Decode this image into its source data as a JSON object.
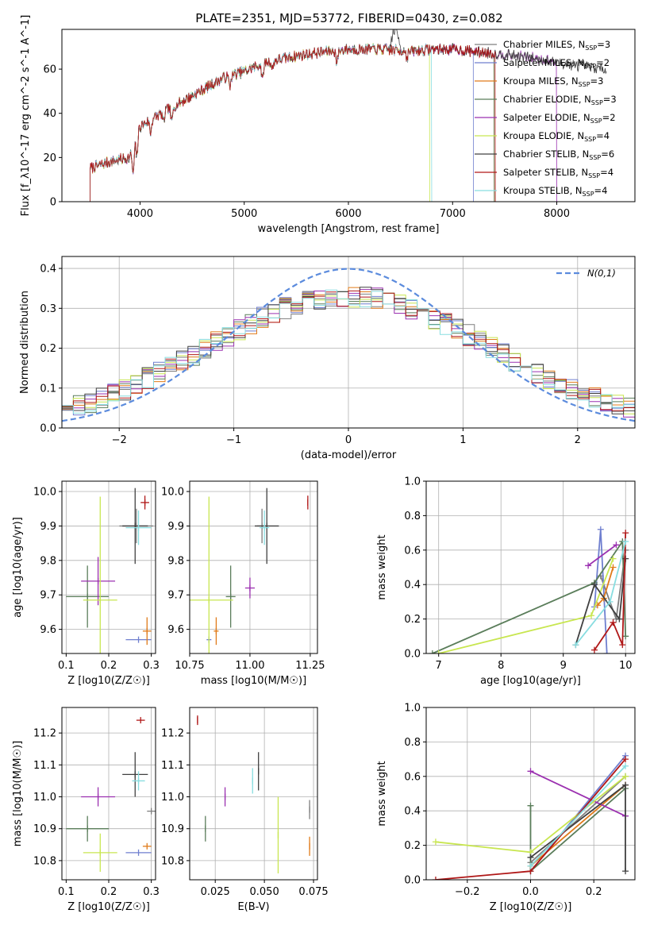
{
  "title": "PLATE=2351, MJD=53772, FIBERID=0430, z=0.082",
  "models": [
    {
      "name": "Chabrier MILES",
      "nssp": "3",
      "color": "#7f7f7f"
    },
    {
      "name": "Salpeter MILES",
      "nssp": "2",
      "color": "#6f7fcf"
    },
    {
      "name": "Kroupa MILES",
      "nssp": "3",
      "color": "#e07b1a"
    },
    {
      "name": "Chabrier ELODIE",
      "nssp": "3",
      "color": "#5a7d5a"
    },
    {
      "name": "Salpeter ELODIE",
      "nssp": "2",
      "color": "#9b30b0"
    },
    {
      "name": "Kroupa ELODIE",
      "nssp": "4",
      "color": "#c8e650"
    },
    {
      "name": "Chabrier STELIB",
      "nssp": "6",
      "color": "#404040"
    },
    {
      "name": "Salpeter STELIB",
      "nssp": "4",
      "color": "#b01818"
    },
    {
      "name": "Kroupa STELIB",
      "nssp": "4",
      "color": "#88dde0"
    }
  ],
  "chart_data": [
    {
      "id": "spectrum",
      "type": "line",
      "xlabel": "wavelength [Angstrom, rest frame]",
      "ylabel": "Flux [f_λ10^-17 erg cm^-2 s^-1 A^-1]",
      "xlim": [
        3250,
        8750
      ],
      "ylim": [
        0,
        78
      ],
      "xticks": [
        4000,
        5000,
        6000,
        7000,
        8000
      ],
      "yticks": [
        0,
        20,
        40,
        60
      ],
      "grid": false,
      "legend": "upper-right",
      "continuum_knots": [
        [
          3520,
          15
        ],
        [
          3700,
          18
        ],
        [
          3900,
          20
        ],
        [
          3950,
          28
        ],
        [
          4000,
          34
        ],
        [
          4200,
          40
        ],
        [
          4500,
          48
        ],
        [
          4800,
          56
        ],
        [
          5000,
          59
        ],
        [
          5200,
          63
        ],
        [
          5500,
          66
        ],
        [
          5800,
          68
        ],
        [
          6000,
          69
        ],
        [
          6300,
          69
        ],
        [
          6600,
          68
        ],
        [
          6800,
          69
        ],
        [
          7000,
          69
        ],
        [
          7200,
          68
        ],
        [
          7400,
          67
        ],
        [
          7600,
          66
        ],
        [
          7800,
          65
        ],
        [
          8000,
          63
        ],
        [
          8300,
          61
        ],
        [
          8480,
          60
        ]
      ],
      "series_ranges": [
        [
          3520,
          8480
        ],
        [
          3520,
          7200
        ],
        [
          3520,
          7400
        ],
        [
          3520,
          7400
        ],
        [
          3520,
          8000
        ],
        [
          3520,
          6780
        ],
        [
          3520,
          8480
        ],
        [
          3520,
          7410
        ],
        [
          3520,
          6800
        ]
      ],
      "noise": 2.2
    },
    {
      "id": "residual-hist",
      "type": "line",
      "xlabel": "(data-model)/error",
      "ylabel": "Normed distribution",
      "xlim": [
        -2.5,
        2.5
      ],
      "ylim": [
        0,
        0.43
      ],
      "xticks": [
        -2,
        -1,
        0,
        1,
        2
      ],
      "yticks": [
        0.0,
        0.1,
        0.2,
        0.3,
        0.4
      ],
      "grid": true,
      "legend": "upper-right",
      "normal_label": "N(0,1)",
      "normal_color": "#5b8bdd",
      "bin_width": 0.1
    },
    {
      "id": "z-vs-age",
      "type": "scatter",
      "xlabel": "Z [log10(Z/Z☉)]",
      "ylabel": "age  [log10(age/yr)]",
      "xlim": [
        0.09,
        0.31
      ],
      "ylim": [
        9.53,
        10.03
      ],
      "xticks": [
        0.1,
        0.2,
        0.3
      ],
      "yticks": [
        9.6,
        9.7,
        9.8,
        9.9,
        10.0
      ],
      "grid": true,
      "crosses": [
        {
          "model": 0,
          "x": 0.265,
          "y": 9.9,
          "xerr": 0.04,
          "yerr": 0.05
        },
        {
          "model": 1,
          "x": 0.27,
          "y": 9.57,
          "xerr": 0.03,
          "yerr": 0.0
        },
        {
          "model": 2,
          "x": 0.29,
          "y": 9.595,
          "xerr": 0.01,
          "yerr": 0.04
        },
        {
          "model": 3,
          "x": 0.15,
          "y": 9.695,
          "xerr": 0.05,
          "yerr": 0.09
        },
        {
          "model": 4,
          "x": 0.175,
          "y": 9.74,
          "xerr": 0.04,
          "yerr": 0.07
        },
        {
          "model": 5,
          "x": 0.18,
          "y": 9.685,
          "xerr": 0.04,
          "yerr": 0.3
        },
        {
          "model": 6,
          "x": 0.262,
          "y": 9.9,
          "xerr": 0.03,
          "yerr": 0.11
        },
        {
          "model": 7,
          "x": 0.285,
          "y": 9.968,
          "xerr": 0.01,
          "yerr": 0.02
        },
        {
          "model": 8,
          "x": 0.27,
          "y": 9.895,
          "xerr": 0.03,
          "yerr": 0.05
        }
      ]
    },
    {
      "id": "mass-vs-age",
      "type": "scatter",
      "xlabel": "mass [log10(M/M☉)]",
      "ylabel": "",
      "xlim": [
        10.75,
        11.28
      ],
      "ylim": [
        9.53,
        10.03
      ],
      "xticks": [
        10.75,
        11.0,
        11.25
      ],
      "yticks": [
        9.6,
        9.7,
        9.8,
        9.9,
        10.0
      ],
      "grid": true,
      "crosses": [
        {
          "model": 0,
          "x": 11.05,
          "y": 9.9,
          "xerr": 0.02,
          "yerr": 0.05
        },
        {
          "model": 1,
          "x": 10.83,
          "y": 9.57,
          "xerr": 0.01,
          "yerr": 0.0
        },
        {
          "model": 2,
          "x": 10.86,
          "y": 9.595,
          "xerr": 0.01,
          "yerr": 0.04
        },
        {
          "model": 3,
          "x": 10.92,
          "y": 9.695,
          "xerr": 0.02,
          "yerr": 0.09
        },
        {
          "model": 4,
          "x": 11.0,
          "y": 9.72,
          "xerr": 0.02,
          "yerr": 0.03
        },
        {
          "model": 5,
          "x": 10.83,
          "y": 9.685,
          "xerr": 0.1,
          "yerr": 0.3
        },
        {
          "model": 6,
          "x": 11.07,
          "y": 9.9,
          "xerr": 0.05,
          "yerr": 0.11
        },
        {
          "model": 7,
          "x": 11.24,
          "y": 9.968,
          "xerr": 0.0,
          "yerr": 0.02
        },
        {
          "model": 8,
          "x": 11.06,
          "y": 9.895,
          "xerr": 0.02,
          "yerr": 0.05
        }
      ]
    },
    {
      "id": "age-vs-weight",
      "type": "line",
      "xlabel": "age  [log10(age/yr)]",
      "ylabel": "mass weight",
      "xlim": [
        6.8,
        10.15
      ],
      "ylim": [
        0,
        1
      ],
      "xticks": [
        7,
        8,
        9,
        10
      ],
      "yticks": [
        0.0,
        0.2,
        0.4,
        0.6,
        0.8,
        1.0
      ],
      "grid": true,
      "series": [
        {
          "model": 0,
          "x": [
            9.6,
            9.85,
            10.0
          ],
          "y": [
            0.45,
            0.2,
            0.6
          ]
        },
        {
          "model": 1,
          "x": [
            9.5,
            9.6,
            9.7
          ],
          "y": [
            0.27,
            0.72,
            0.0
          ]
        },
        {
          "model": 2,
          "x": [
            9.55,
            9.65,
            9.8
          ],
          "y": [
            0.28,
            0.32,
            0.5
          ]
        },
        {
          "model": 3,
          "x": [
            6.9,
            9.5,
            9.95,
            10.0
          ],
          "y": [
            0.0,
            0.41,
            0.65,
            0.1
          ]
        },
        {
          "model": 4,
          "x": [
            9.4,
            9.85
          ],
          "y": [
            0.51,
            0.63
          ]
        },
        {
          "model": 5,
          "x": [
            7.0,
            9.45,
            9.8
          ],
          "y": [
            0.0,
            0.22,
            0.55
          ]
        },
        {
          "model": 6,
          "x": [
            9.2,
            9.5,
            9.9,
            10.0
          ],
          "y": [
            0.05,
            0.4,
            0.2,
            0.55
          ]
        },
        {
          "model": 7,
          "x": [
            9.5,
            9.8,
            9.95,
            10.0
          ],
          "y": [
            0.02,
            0.18,
            0.05,
            0.7
          ]
        },
        {
          "model": 8,
          "x": [
            9.2,
            9.75,
            10.0
          ],
          "y": [
            0.05,
            0.3,
            0.65
          ]
        }
      ]
    },
    {
      "id": "z-vs-mass",
      "type": "scatter",
      "xlabel": "Z [log10(Z/Z☉)]",
      "ylabel": "mass [log10(M/M☉)]",
      "xlim": [
        0.09,
        0.31
      ],
      "ylim": [
        10.74,
        11.28
      ],
      "xticks": [
        0.1,
        0.2,
        0.3
      ],
      "yticks": [
        10.8,
        10.9,
        11.0,
        11.1,
        11.2
      ],
      "grid": true,
      "crosses": [
        {
          "model": 0,
          "x": 0.3,
          "y": 10.955,
          "xerr": 0.01,
          "yerr": 0.0
        },
        {
          "model": 1,
          "x": 0.27,
          "y": 10.825,
          "xerr": 0.03,
          "yerr": 0.0
        },
        {
          "model": 2,
          "x": 0.29,
          "y": 10.845,
          "xerr": 0.01,
          "yerr": 0.0
        },
        {
          "model": 3,
          "x": 0.15,
          "y": 10.9,
          "xerr": 0.05,
          "yerr": 0.04
        },
        {
          "model": 4,
          "x": 0.175,
          "y": 11.0,
          "xerr": 0.04,
          "yerr": 0.03
        },
        {
          "model": 5,
          "x": 0.18,
          "y": 10.825,
          "xerr": 0.04,
          "yerr": 0.06
        },
        {
          "model": 6,
          "x": 0.262,
          "y": 11.07,
          "xerr": 0.03,
          "yerr": 0.07
        },
        {
          "model": 7,
          "x": 0.275,
          "y": 11.24,
          "xerr": 0.01,
          "yerr": 0.0
        },
        {
          "model": 8,
          "x": 0.27,
          "y": 11.05,
          "xerr": 0.015,
          "yerr": 0.03
        }
      ]
    },
    {
      "id": "ebv-vs-mass",
      "type": "scatter",
      "xlabel": "E(B-V)",
      "ylabel": "",
      "xlim": [
        0.012,
        0.077
      ],
      "ylim": [
        10.74,
        11.28
      ],
      "xticks": [
        0.025,
        0.05,
        0.075
      ],
      "yticks": [
        10.8,
        10.9,
        11.0,
        11.1,
        11.2
      ],
      "grid": true,
      "crosses": [
        {
          "model": 0,
          "x": 0.073,
          "y": 10.96,
          "xerr": 0.0,
          "yerr": 0.03
        },
        {
          "model": 2,
          "x": 0.073,
          "y": 10.845,
          "xerr": 0.0,
          "yerr": 0.03
        },
        {
          "model": 3,
          "x": 0.02,
          "y": 10.9,
          "xerr": 0.0,
          "yerr": 0.04
        },
        {
          "model": 4,
          "x": 0.03,
          "y": 11.0,
          "xerr": 0.0,
          "yerr": 0.03
        },
        {
          "model": 5,
          "x": 0.057,
          "y": 10.88,
          "xerr": 0.0,
          "yerr": 0.12
        },
        {
          "model": 6,
          "x": 0.047,
          "y": 11.08,
          "xerr": 0.0,
          "yerr": 0.06
        },
        {
          "model": 7,
          "x": 0.016,
          "y": 11.24,
          "xerr": 0.0,
          "yerr": 0.015
        },
        {
          "model": 8,
          "x": 0.044,
          "y": 11.05,
          "xerr": 0.0,
          "yerr": 0.04
        }
      ]
    },
    {
      "id": "z-vs-weight",
      "type": "line",
      "xlabel": "Z [log10(Z/Z☉)]",
      "ylabel": "mass weight",
      "xlim": [
        -0.33,
        0.33
      ],
      "ylim": [
        0,
        1
      ],
      "xticks": [
        -0.2,
        0.0,
        0.2
      ],
      "yticks": [
        0.0,
        0.2,
        0.4,
        0.6,
        0.8,
        1.0
      ],
      "grid": true,
      "series": [
        {
          "model": 0,
          "x": [
            0.0,
            0.3
          ],
          "y": [
            0.1,
            0.6
          ]
        },
        {
          "model": 1,
          "x": [
            0.0,
            0.3
          ],
          "y": [
            0.05,
            0.72
          ]
        },
        {
          "model": 2,
          "x": [
            0.0,
            0.3
          ],
          "y": [
            0.08,
            0.55
          ]
        },
        {
          "model": 3,
          "x": [
            0.0,
            0.0,
            0.3
          ],
          "y": [
            0.43,
            0.05,
            0.53
          ]
        },
        {
          "model": 4,
          "x": [
            0.0,
            0.3
          ],
          "y": [
            0.63,
            0.37
          ]
        },
        {
          "model": 5,
          "x": [
            -0.3,
            0.0,
            0.3
          ],
          "y": [
            0.22,
            0.16,
            0.6
          ]
        },
        {
          "model": 6,
          "x": [
            0.0,
            0.3,
            0.3
          ],
          "y": [
            0.13,
            0.55,
            0.05
          ]
        },
        {
          "model": 7,
          "x": [
            -0.3,
            0.0,
            0.3
          ],
          "y": [
            0.0,
            0.05,
            0.7
          ]
        },
        {
          "model": 8,
          "x": [
            0.0,
            0.3
          ],
          "y": [
            0.08,
            0.66
          ]
        }
      ]
    }
  ]
}
